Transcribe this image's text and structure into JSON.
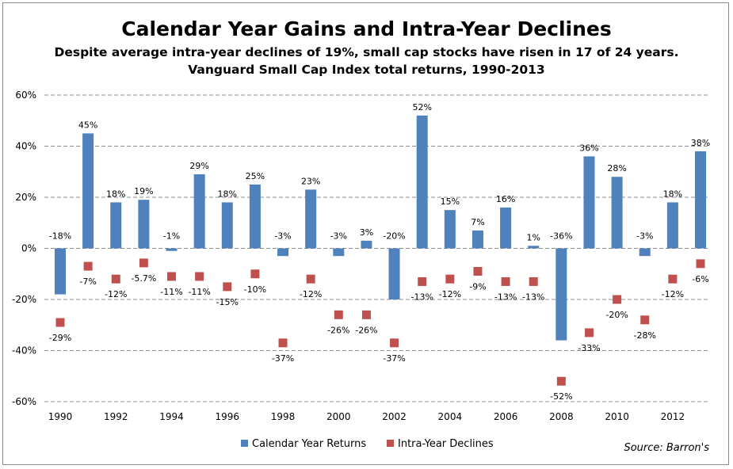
{
  "title": "Calendar Year Gains and Intra-Year Declines",
  "subtitle_line1": "Despite average intra-year declines of 19%, small cap stocks have risen in 17 of 24 years.",
  "subtitle_line2": "Vanguard Small Cap Index total returns, 1990-2013",
  "source": "Source: Barron's",
  "colors": {
    "returns": "#4f81bd",
    "declines": "#c0504d",
    "grid": "#8c8c8c"
  },
  "chart_data": {
    "type": "bar",
    "x": [
      1990,
      1991,
      1992,
      1993,
      1994,
      1995,
      1996,
      1997,
      1998,
      1999,
      2000,
      2001,
      2002,
      2003,
      2004,
      2005,
      2006,
      2007,
      2008,
      2009,
      2010,
      2011,
      2012,
      2013
    ],
    "x_tick_labels": [
      "1990",
      "1992",
      "1994",
      "1996",
      "1998",
      "2000",
      "2002",
      "2004",
      "2006",
      "2008",
      "2010",
      "2012"
    ],
    "y_tick_labels": [
      "60%",
      "40%",
      "20%",
      "0%",
      "-20%",
      "-40%",
      "-60%"
    ],
    "ylim": [
      -60,
      60
    ],
    "grid": true,
    "legend_position": "bottom",
    "series": [
      {
        "name": "Calendar Year Returns",
        "kind": "bar",
        "values": [
          -18,
          45,
          18,
          19,
          -1,
          29,
          18,
          25,
          -3,
          23,
          -3,
          3,
          -20,
          52,
          15,
          7,
          16,
          1,
          -36,
          36,
          28,
          -3,
          18,
          38
        ],
        "labels": [
          "-18%",
          "45%",
          "18%",
          "19%",
          "-1%",
          "29%",
          "18%",
          "25%",
          "-3%",
          "23%",
          "-3%",
          "3%",
          "-20%",
          "52%",
          "15%",
          "7%",
          "16%",
          "1%",
          "-36%",
          "36%",
          "28%",
          "-3%",
          "18%",
          "38%"
        ]
      },
      {
        "name": "Intra-Year Declines",
        "kind": "marker",
        "values": [
          -29,
          -7,
          -12,
          -5.7,
          -11,
          -11,
          -15,
          -10,
          -37,
          -12,
          -26,
          -26,
          -37,
          -13,
          -12,
          -9,
          -13,
          -13,
          -52,
          -33,
          -20,
          -28,
          -12,
          -6
        ],
        "labels": [
          "-29%",
          "-7%",
          "-12%",
          "-5.7%",
          "-11%",
          "-11%",
          "-15%",
          "-10%",
          "-37%",
          "-12%",
          "-26%",
          "-26%",
          "-37%",
          "-13%",
          "-12%",
          "-9%",
          "-13%",
          "-13%",
          "-52%",
          "-33%",
          "-20%",
          "-28%",
          "-12%",
          "-6%"
        ]
      }
    ]
  }
}
